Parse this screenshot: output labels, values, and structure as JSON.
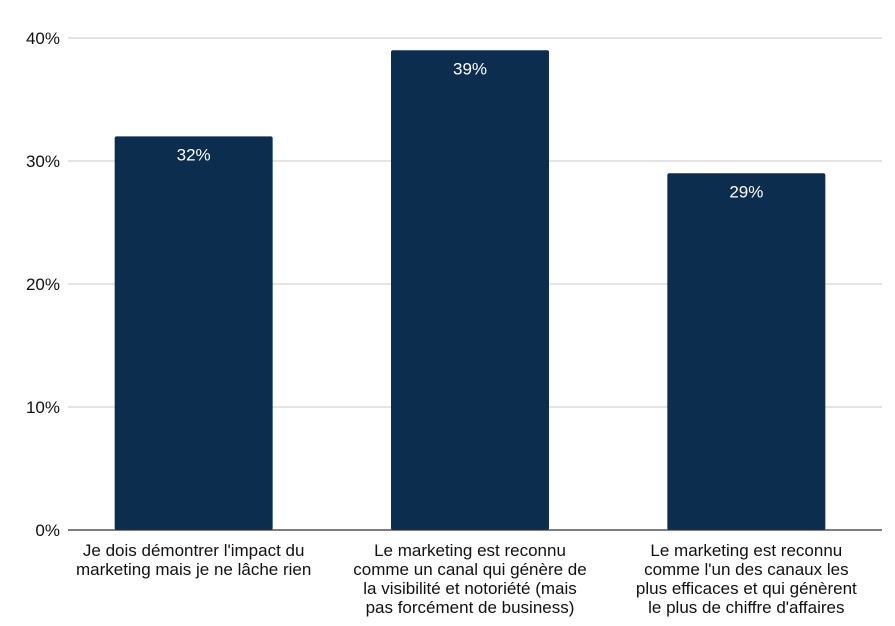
{
  "chart_data": {
    "type": "bar",
    "categories": [
      [
        "Je dois démontrer l'impact du",
        "marketing mais je ne lâche rien"
      ],
      [
        "Le marketing est reconnu",
        "comme un canal qui génère de",
        "la visibilité et notoriété (mais",
        "pas forcément de business)"
      ],
      [
        "Le marketing est reconnu",
        "comme l'un des canaux les",
        "plus efficaces et qui génèrent",
        "le plus de chiffre d'affaires"
      ]
    ],
    "values": [
      32,
      39,
      29
    ],
    "data_labels": [
      "32%",
      "39%",
      "29%"
    ],
    "title": "",
    "xlabel": "",
    "ylabel": "",
    "ylim": [
      0,
      40
    ],
    "yticks": [
      0,
      10,
      20,
      30,
      40
    ],
    "ytick_labels": [
      "0%",
      "10%",
      "20%",
      "30%",
      "40%"
    ],
    "grid": true,
    "legend": "none",
    "colors": {
      "bar": "#0c2d4e",
      "grid": "#c8c8c8",
      "axis": "#333333",
      "text": "#111111",
      "data_label": "#ffffff"
    }
  }
}
